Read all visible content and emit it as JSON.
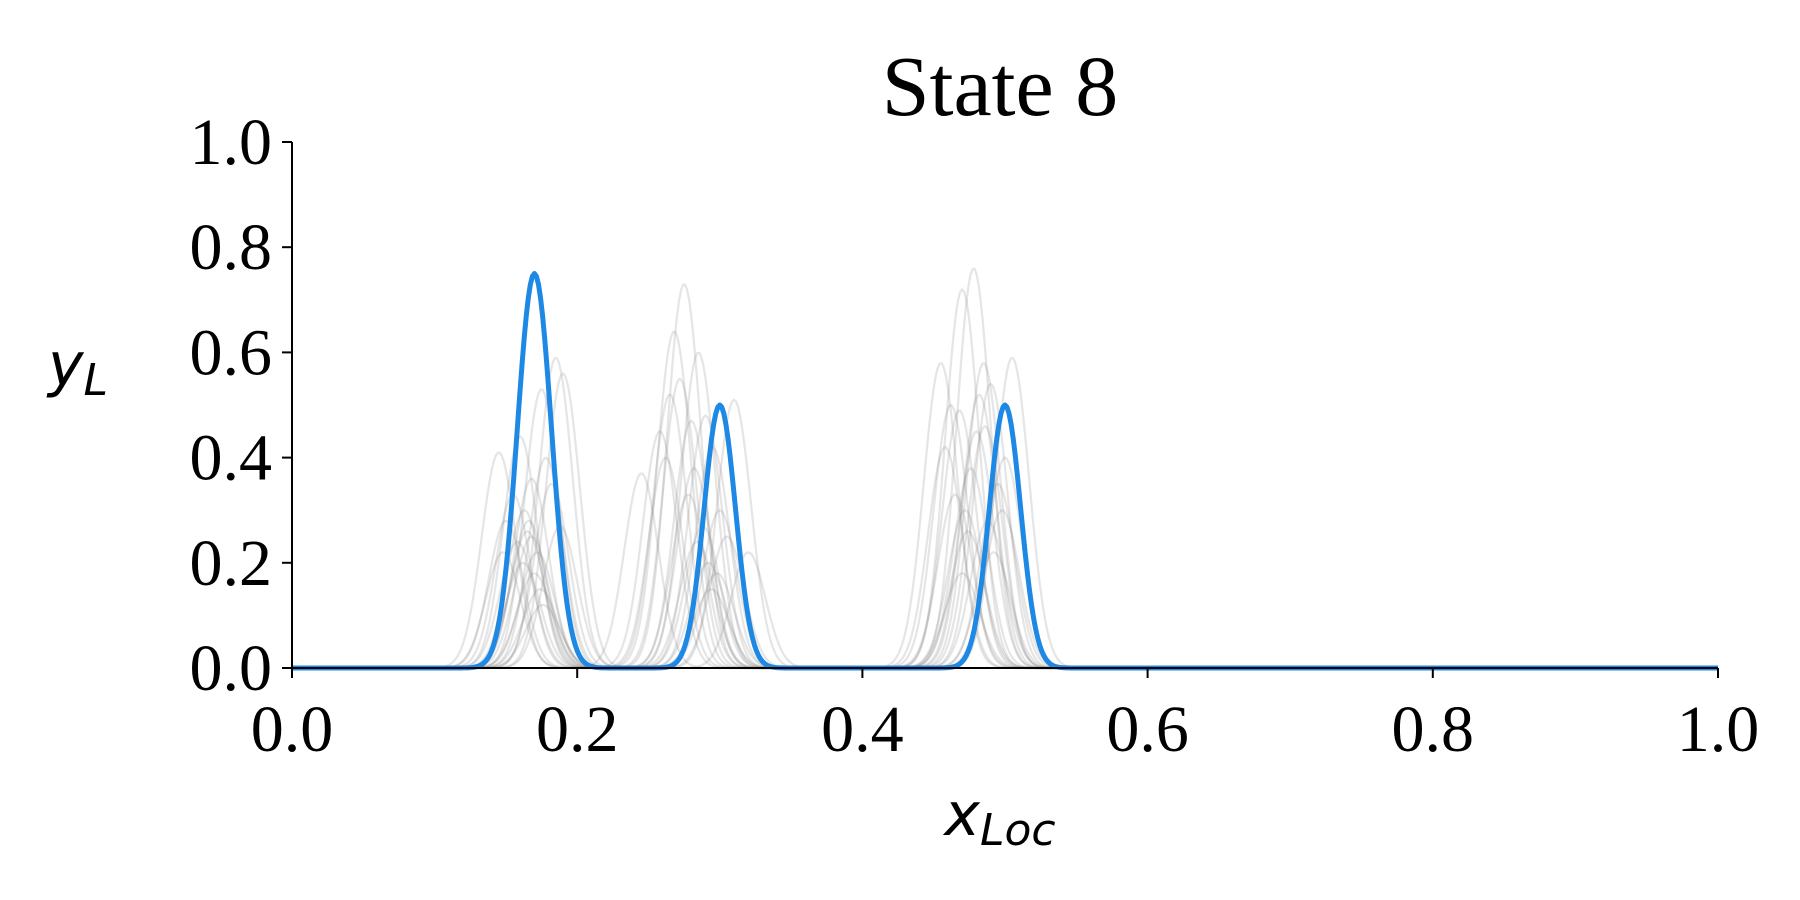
{
  "chart_data": {
    "type": "line",
    "title": "State 8",
    "xlabel_main": "x",
    "xlabel_sub": "Loc",
    "ylabel_main": "y",
    "ylabel_sub": "L",
    "xlim": [
      0.0,
      1.0
    ],
    "ylim": [
      0.0,
      1.0
    ],
    "x_ticks": [
      "0.0",
      "0.2",
      "0.4",
      "0.6",
      "0.8",
      "1.0"
    ],
    "y_ticks": [
      "0.0",
      "0.2",
      "0.4",
      "0.6",
      "0.8",
      "1.0"
    ],
    "grid": false,
    "legend": "none",
    "main_color": "#1e88e5",
    "background_color": "#888888",
    "main_series": {
      "peaks": [
        {
          "center": 0.17,
          "amplitude": 0.75,
          "sigma": 0.012
        },
        {
          "center": 0.3,
          "amplitude": 0.5,
          "sigma": 0.011
        },
        {
          "center": 0.5,
          "amplitude": 0.5,
          "sigma": 0.011
        }
      ]
    },
    "background_series": [
      {
        "peaks": [
          [
            0.145,
            0.41,
            0.012
          ],
          [
            0.275,
            0.73,
            0.012
          ],
          [
            0.478,
            0.76,
            0.012
          ]
        ]
      },
      {
        "peaks": [
          [
            0.185,
            0.59,
            0.012
          ],
          [
            0.268,
            0.64,
            0.012
          ],
          [
            0.47,
            0.72,
            0.012
          ]
        ]
      },
      {
        "peaks": [
          [
            0.16,
            0.44,
            0.012
          ],
          [
            0.245,
            0.37,
            0.012
          ],
          [
            0.455,
            0.58,
            0.012
          ]
        ]
      },
      {
        "peaks": [
          [
            0.19,
            0.56,
            0.012
          ],
          [
            0.285,
            0.6,
            0.012
          ],
          [
            0.505,
            0.59,
            0.012
          ]
        ]
      },
      {
        "peaks": [
          [
            0.175,
            0.53,
            0.012
          ],
          [
            0.31,
            0.51,
            0.012
          ],
          [
            0.485,
            0.58,
            0.012
          ]
        ]
      },
      {
        "peaks": [
          [
            0.155,
            0.33,
            0.012
          ],
          [
            0.258,
            0.45,
            0.012
          ],
          [
            0.462,
            0.5,
            0.012
          ]
        ]
      },
      {
        "peaks": [
          [
            0.165,
            0.26,
            0.012
          ],
          [
            0.29,
            0.48,
            0.012
          ],
          [
            0.49,
            0.54,
            0.012
          ]
        ]
      },
      {
        "peaks": [
          [
            0.15,
            0.28,
            0.012
          ],
          [
            0.32,
            0.22,
            0.012
          ],
          [
            0.468,
            0.49,
            0.012
          ]
        ]
      },
      {
        "peaks": [
          [
            0.168,
            0.25,
            0.012
          ],
          [
            0.295,
            0.42,
            0.012
          ],
          [
            0.48,
            0.45,
            0.012
          ]
        ]
      },
      {
        "peaks": [
          [
            0.172,
            0.22,
            0.012
          ],
          [
            0.282,
            0.38,
            0.012
          ],
          [
            0.495,
            0.35,
            0.012
          ]
        ]
      },
      {
        "peaks": [
          [
            0.178,
            0.4,
            0.012
          ],
          [
            0.265,
            0.52,
            0.012
          ],
          [
            0.458,
            0.42,
            0.012
          ]
        ]
      },
      {
        "peaks": [
          [
            0.162,
            0.2,
            0.012
          ],
          [
            0.3,
            0.3,
            0.012
          ],
          [
            0.472,
            0.3,
            0.012
          ]
        ]
      },
      {
        "peaks": [
          [
            0.158,
            0.24,
            0.012
          ],
          [
            0.288,
            0.27,
            0.012
          ],
          [
            0.488,
            0.28,
            0.012
          ]
        ]
      },
      {
        "peaks": [
          [
            0.182,
            0.35,
            0.012
          ],
          [
            0.305,
            0.25,
            0.012
          ],
          [
            0.5,
            0.4,
            0.012
          ]
        ]
      },
      {
        "peaks": [
          [
            0.17,
            0.18,
            0.012
          ],
          [
            0.278,
            0.33,
            0.012
          ],
          [
            0.476,
            0.38,
            0.012
          ]
        ]
      },
      {
        "peaks": [
          [
            0.148,
            0.22,
            0.012
          ],
          [
            0.292,
            0.2,
            0.012
          ],
          [
            0.465,
            0.33,
            0.012
          ]
        ]
      },
      {
        "peaks": [
          [
            0.166,
            0.28,
            0.012
          ],
          [
            0.272,
            0.55,
            0.012
          ],
          [
            0.482,
            0.52,
            0.012
          ]
        ]
      },
      {
        "peaks": [
          [
            0.174,
            0.15,
            0.012
          ],
          [
            0.298,
            0.18,
            0.012
          ],
          [
            0.492,
            0.22,
            0.012
          ]
        ]
      },
      {
        "peaks": [
          [
            0.188,
            0.27,
            0.012
          ],
          [
            0.284,
            0.24,
            0.012
          ],
          [
            0.474,
            0.26,
            0.012
          ]
        ]
      },
      {
        "peaks": [
          [
            0.163,
            0.3,
            0.012
          ],
          [
            0.262,
            0.4,
            0.012
          ],
          [
            0.486,
            0.46,
            0.012
          ]
        ]
      },
      {
        "peaks": [
          [
            0.176,
            0.12,
            0.012
          ],
          [
            0.294,
            0.15,
            0.012
          ],
          [
            0.47,
            0.18,
            0.012
          ]
        ]
      },
      {
        "peaks": [
          [
            0.168,
            0.36,
            0.012
          ],
          [
            0.28,
            0.47,
            0.012
          ],
          [
            0.498,
            0.3,
            0.012
          ]
        ]
      }
    ]
  }
}
